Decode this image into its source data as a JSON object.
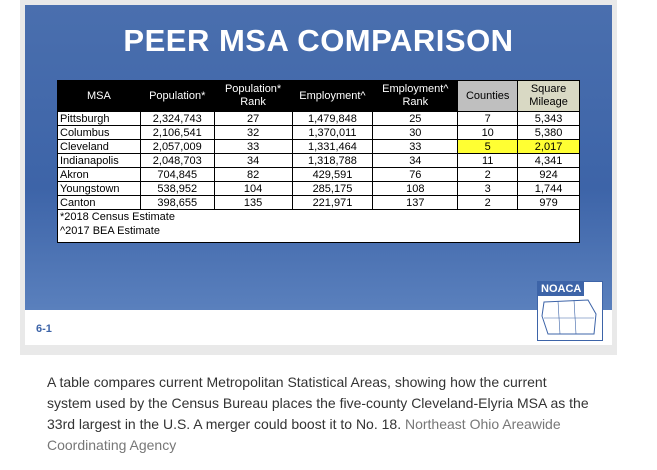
{
  "slide": {
    "title": "PEER MSA COMPARISON",
    "table": {
      "headers": [
        "MSA",
        "Population*",
        "Population* Rank",
        "Employment^",
        "Employment^ Rank",
        "Counties",
        "Square Mileage"
      ],
      "rows": [
        [
          "Pittsburgh",
          "2,324,743",
          "27",
          "1,479,848",
          "25",
          "7",
          "5,343"
        ],
        [
          "Columbus",
          "2,106,541",
          "32",
          "1,370,011",
          "30",
          "10",
          "5,380"
        ],
        [
          "Cleveland",
          "2,057,009",
          "33",
          "1,331,464",
          "33",
          "5",
          "2,017"
        ],
        [
          "Indianapolis",
          "2,048,703",
          "34",
          "1,318,788",
          "34",
          "11",
          "4,341"
        ],
        [
          "Akron",
          "704,845",
          "82",
          "429,591",
          "76",
          "2",
          "924"
        ],
        [
          "Youngstown",
          "538,952",
          "104",
          "285,175",
          "108",
          "3",
          "1,744"
        ],
        [
          "Canton",
          "398,655",
          "135",
          "221,971",
          "137",
          "2",
          "979"
        ]
      ],
      "footnotes": [
        "*2018 Census Estimate",
        "^2017 BEA Estimate"
      ]
    },
    "slide_number": "6-1",
    "logo": "NOACA"
  },
  "caption": {
    "text": "A table compares current Metropolitan Statistical Areas, showing how the current system used by the Census Bureau places the five-county Cleveland-Elyria MSA as the 33rd largest in the U.S. A merger could boost it to No. 18.",
    "credit": "Northeast Ohio Areawide Coordinating Agency"
  }
}
